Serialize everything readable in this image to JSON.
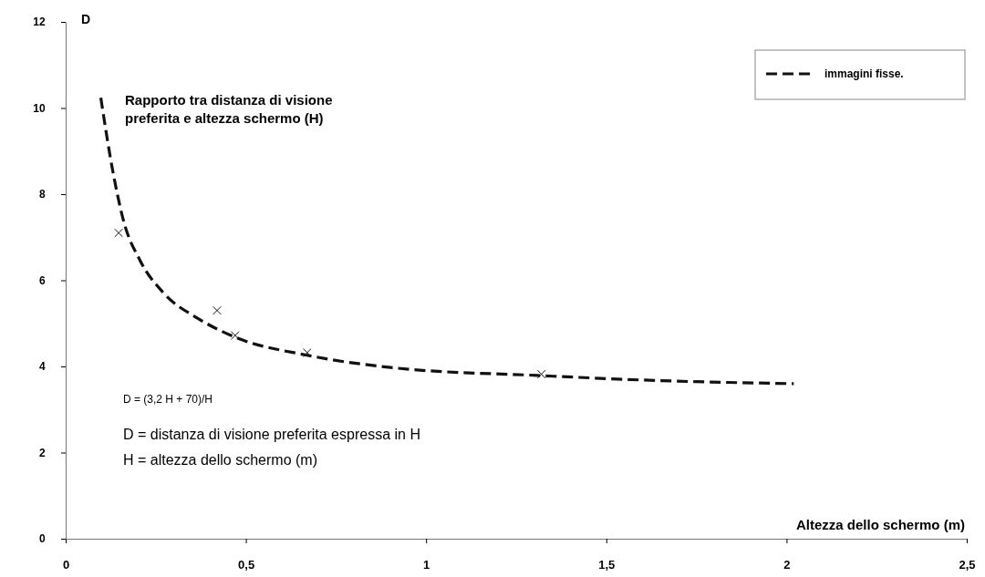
{
  "chart_data": {
    "type": "line",
    "title": "Rapporto tra distanza di visione preferita e altezza schermo (H)",
    "xlabel": "Altezza dello schermo (m)",
    "ylabel": "D",
    "xlim": [
      0,
      2.5
    ],
    "xticks": [
      0,
      {
        "value": 0.5,
        "label": "0,5"
      },
      1,
      {
        "value": 1.5,
        "label": "1,5"
      },
      2,
      {
        "value": 2.5,
        "label": "2,5"
      }
    ],
    "ylim": [
      0,
      12
    ],
    "yticks": [
      0,
      2,
      4,
      6,
      8,
      10,
      12
    ],
    "legend": "top right",
    "grid": false,
    "annotations": [
      "D = (3,2 H + 70)/H",
      "D = distanza di visione preferita espressa in H",
      "H = altezza dello schermo (m)"
    ],
    "series": [
      {
        "name": "immagini fisse.",
        "color": "#111111",
        "line_style": "dashed",
        "marker": "none",
        "x": [
          0.0975,
          0.13,
          0.16,
          0.207,
          0.27,
          0.37,
          0.47,
          0.67,
          0.92,
          1.31,
          1.65,
          2.02
        ],
        "values": [
          10.24,
          8.57,
          7.4,
          6.45,
          5.72,
          5.1,
          4.68,
          4.26,
          3.96,
          3.79,
          3.67,
          3.6
        ]
      },
      {
        "type": "scatter",
        "color": "#111111",
        "marker": "cross",
        "x": [
          0.147,
          0.42,
          0.47,
          0.67,
          1.32
        ],
        "values": [
          7.1,
          5.3,
          4.72,
          4.32,
          3.82
        ]
      }
    ]
  }
}
